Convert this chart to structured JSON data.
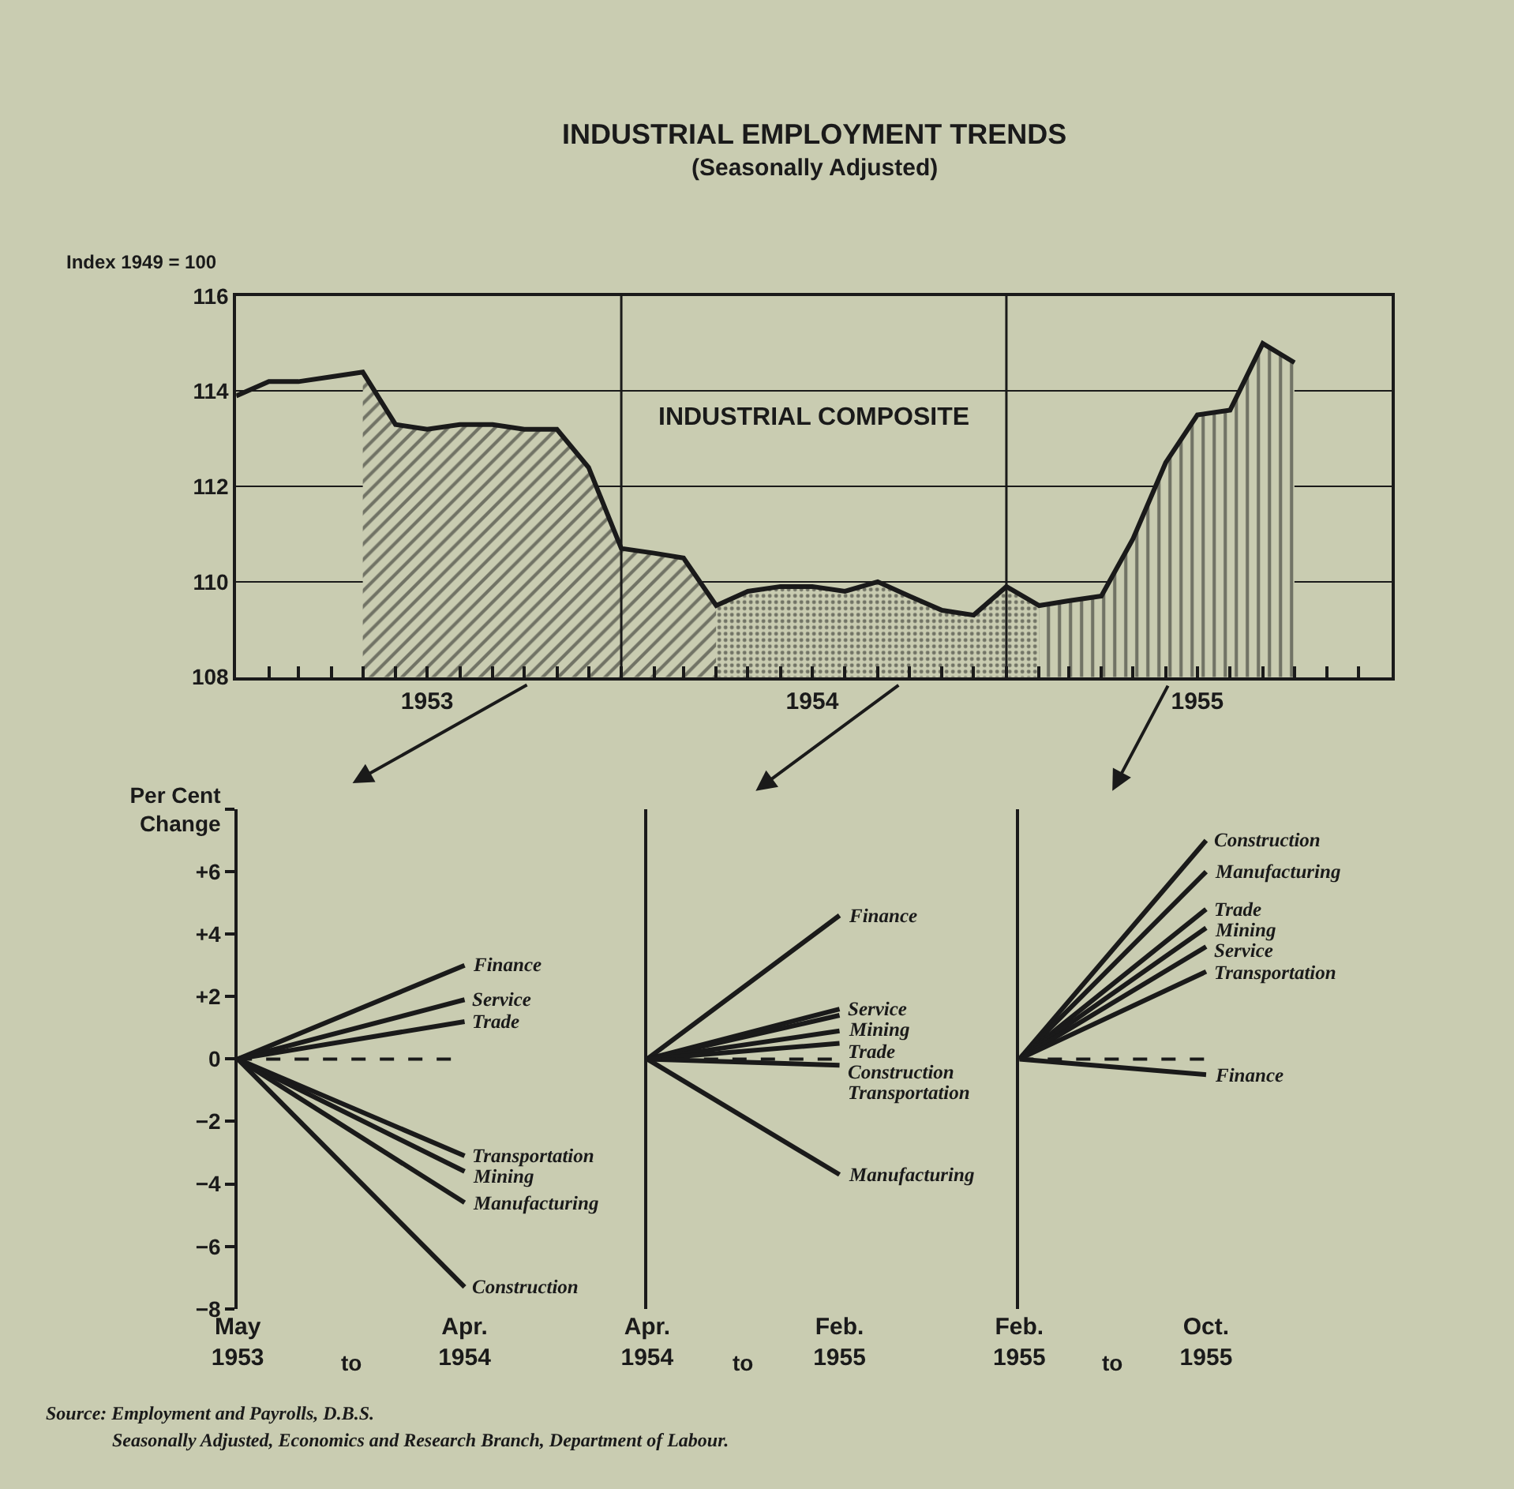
{
  "chart_data": [
    {
      "type": "line",
      "title": "INDUSTRIAL EMPLOYMENT TRENDS",
      "subtitle": "(Seasonally Adjusted)",
      "ylabel": "Index 1949 = 100",
      "x": [
        "1953-01",
        "1953-02",
        "1953-03",
        "1953-04",
        "1953-05",
        "1953-06",
        "1953-07",
        "1953-08",
        "1953-09",
        "1953-10",
        "1953-11",
        "1953-12",
        "1954-01",
        "1954-02",
        "1954-03",
        "1954-04",
        "1954-05",
        "1954-06",
        "1954-07",
        "1954-08",
        "1954-09",
        "1954-10",
        "1954-11",
        "1954-12",
        "1955-01",
        "1955-02",
        "1955-03",
        "1955-04",
        "1955-05",
        "1955-06",
        "1955-07",
        "1955-08",
        "1955-09",
        "1955-10"
      ],
      "series": [
        {
          "type": "area",
          "color": "#1a1a1a",
          "x": [
            "1953-05",
            "1953-06",
            "1953-07",
            "1953-08",
            "1953-09",
            "1953-10",
            "1953-11",
            "1953-12",
            "1954-01",
            "1954-02",
            "1954-03",
            "1954-04"
          ],
          "values": [
            114.4,
            113.3,
            113.2,
            113.3,
            113.3,
            113.2,
            113.2,
            112.4,
            110.7,
            110.6,
            110.5,
            109.5
          ]
        },
        {
          "type": "area",
          "color": "#1a1a1a",
          "x": [
            "1954-04",
            "1954-05",
            "1954-06",
            "1954-07",
            "1954-08",
            "1954-09",
            "1954-10",
            "1954-11",
            "1954-12",
            "1955-01",
            "1955-02"
          ],
          "values": [
            109.5,
            109.8,
            109.9,
            109.9,
            109.8,
            110.0,
            109.7,
            109.4,
            109.3,
            109.9,
            109.5
          ]
        },
        {
          "type": "area",
          "color": "#1a1a1a",
          "x": [
            "1955-02",
            "1955-03",
            "1955-04",
            "1955-05",
            "1955-06",
            "1955-07",
            "1955-08",
            "1955-09",
            "1955-10"
          ],
          "values": [
            109.5,
            109.6,
            109.7,
            110.9,
            112.5,
            113.5,
            113.6,
            115.0,
            114.6
          ]
        },
        {
          "color": "#1a1a1a",
          "values": [
            113.9,
            114.2,
            114.2,
            114.3,
            114.4,
            113.3,
            113.2,
            113.3,
            113.3,
            113.2,
            113.2,
            112.4,
            110.7,
            110.6,
            110.5,
            109.5,
            109.8,
            109.9,
            109.9,
            109.8,
            110.0,
            109.7,
            109.4,
            109.3,
            109.9,
            109.5,
            109.6,
            109.7,
            110.9,
            112.5,
            113.5,
            113.6,
            115.0,
            114.6
          ]
        }
      ],
      "xlim": [
        "1953-01",
        "1956-01"
      ],
      "xticks": [
        {
          "value": "1953-01",
          "label": null
        },
        {
          "value": "1953-02",
          "label": null
        },
        {
          "value": "1953-03",
          "label": null
        },
        {
          "value": "1953-04",
          "label": null
        },
        {
          "value": "1953-05",
          "label": null
        },
        {
          "value": "1953-06",
          "label": null
        },
        {
          "value": "1953-07",
          "label": "1953"
        },
        {
          "value": "1953-08",
          "label": null
        },
        {
          "value": "1953-09",
          "label": null
        },
        {
          "value": "1953-10",
          "label": null
        },
        {
          "value": "1953-11",
          "label": null
        },
        {
          "value": "1953-12",
          "label": null
        },
        {
          "value": "1954-01",
          "label": null
        },
        {
          "value": "1954-02",
          "label": null
        },
        {
          "value": "1954-03",
          "label": null
        },
        {
          "value": "1954-04",
          "label": null
        },
        {
          "value": "1954-05",
          "label": null
        },
        {
          "value": "1954-06",
          "label": null
        },
        {
          "value": "1954-07",
          "label": "1954"
        },
        {
          "value": "1954-08",
          "label": null
        },
        {
          "value": "1954-09",
          "label": null
        },
        {
          "value": "1954-10",
          "label": null
        },
        {
          "value": "1954-11",
          "label": null
        },
        {
          "value": "1954-12",
          "label": null
        },
        {
          "value": "1955-01",
          "label": null
        },
        {
          "value": "1955-02",
          "label": null
        },
        {
          "value": "1955-03",
          "label": null
        },
        {
          "value": "1955-04",
          "label": null
        },
        {
          "value": "1955-05",
          "label": null
        },
        {
          "value": "1955-06",
          "label": null
        },
        {
          "value": "1955-07",
          "label": "1955"
        },
        {
          "value": "1955-08",
          "label": null
        },
        {
          "value": "1955-09",
          "label": null
        },
        {
          "value": "1955-10",
          "label": null
        },
        {
          "value": "1955-11",
          "label": null
        },
        {
          "value": "1955-12",
          "label": null
        }
      ],
      "ylim": [
        108,
        116
      ],
      "yticks": [
        108,
        110,
        112,
        114,
        116
      ],
      "grid": "y",
      "ref_lines": [
        {
          "axis": "x",
          "value": "1954-01",
          "color": "#1a1a1a"
        },
        {
          "axis": "x",
          "value": "1955-01",
          "color": "#1a1a1a"
        }
      ],
      "annotations": [
        "INDUSTRIAL COMPOSITE",
        "Source: Employment and Payrolls, D.B.S.",
        "Seasonally Adjusted, Economics and Research Branch, Department of Labour."
      ]
    },
    {
      "type": "line",
      "categories": [
        "May\n1953",
        "Apr.\n1954"
      ],
      "annotations": [
        "to"
      ],
      "series": [
        {
          "name": "Finance",
          "color": "#1a1a1a",
          "values": [
            0,
            3.0
          ]
        },
        {
          "name": "Service",
          "color": "#1a1a1a",
          "values": [
            0,
            1.9
          ]
        },
        {
          "name": "Trade",
          "color": "#1a1a1a",
          "values": [
            0,
            1.2
          ]
        },
        {
          "name": "Transportation",
          "color": "#1a1a1a",
          "values": [
            0,
            -3.1
          ]
        },
        {
          "name": "Mining",
          "color": "#1a1a1a",
          "values": [
            0,
            -3.6
          ]
        },
        {
          "name": "Manufacturing",
          "color": "#1a1a1a",
          "values": [
            0,
            -4.6
          ]
        },
        {
          "name": "Construction",
          "color": "#1a1a1a",
          "values": [
            0,
            -7.3
          ]
        }
      ],
      "ylim": [
        -8,
        8
      ],
      "yticks": [
        {
          "value": 8,
          "label": "Per Cent\nChange"
        },
        {
          "value": 6,
          "label": "+6"
        },
        {
          "value": 4,
          "label": "+4"
        },
        {
          "value": 2,
          "label": "+2"
        },
        0,
        {
          "value": -2,
          "label": "−2"
        },
        {
          "value": -4,
          "label": "−4"
        },
        {
          "value": -6,
          "label": "−6"
        },
        {
          "value": -8,
          "label": "−8"
        }
      ],
      "ref_lines": [
        {
          "axis": "y",
          "value": 0,
          "line_style": "dashed",
          "color": "#1a1a1a"
        }
      ]
    },
    {
      "type": "line",
      "categories": [
        "Apr.\n1954",
        "Feb.\n1955"
      ],
      "annotations": [
        "to"
      ],
      "series": [
        {
          "name": "Finance",
          "color": "#1a1a1a",
          "values": [
            0,
            4.6
          ]
        },
        {
          "name": "Service",
          "color": "#1a1a1a",
          "values": [
            0,
            1.6
          ]
        },
        {
          "name": "Mining",
          "color": "#1a1a1a",
          "values": [
            0,
            1.4
          ]
        },
        {
          "name": "Trade",
          "color": "#1a1a1a",
          "values": [
            0,
            0.9
          ]
        },
        {
          "name": "Construction",
          "color": "#1a1a1a",
          "values": [
            0,
            0.5
          ]
        },
        {
          "name": "Transportation",
          "color": "#1a1a1a",
          "values": [
            0,
            -0.2
          ]
        },
        {
          "name": "Manufacturing",
          "color": "#1a1a1a",
          "values": [
            0,
            -3.7
          ]
        }
      ],
      "ylim": [
        -8,
        8
      ],
      "tick_labels": "x",
      "ref_lines": [
        {
          "axis": "y",
          "value": 0,
          "line_style": "dashed",
          "color": "#1a1a1a"
        }
      ]
    },
    {
      "type": "line",
      "categories": [
        "Feb.\n1955",
        "Oct.\n1955"
      ],
      "annotations": [
        "to"
      ],
      "series": [
        {
          "name": "Construction",
          "color": "#1a1a1a",
          "values": [
            0,
            7.0
          ]
        },
        {
          "name": "Manufacturing",
          "color": "#1a1a1a",
          "values": [
            0,
            6.0
          ]
        },
        {
          "name": "Trade",
          "color": "#1a1a1a",
          "values": [
            0,
            4.8
          ]
        },
        {
          "name": "Mining",
          "color": "#1a1a1a",
          "values": [
            0,
            4.2
          ]
        },
        {
          "name": "Service",
          "color": "#1a1a1a",
          "values": [
            0,
            3.6
          ]
        },
        {
          "name": "Transportation",
          "color": "#1a1a1a",
          "values": [
            0,
            2.8
          ]
        },
        {
          "name": "Finance",
          "color": "#1a1a1a",
          "values": [
            0,
            -0.5
          ]
        }
      ],
      "ylim": [
        -8,
        8
      ],
      "tick_labels": "x",
      "ref_lines": [
        {
          "axis": "y",
          "value": 0,
          "line_style": "dashed",
          "color": "#1a1a1a"
        }
      ]
    }
  ]
}
